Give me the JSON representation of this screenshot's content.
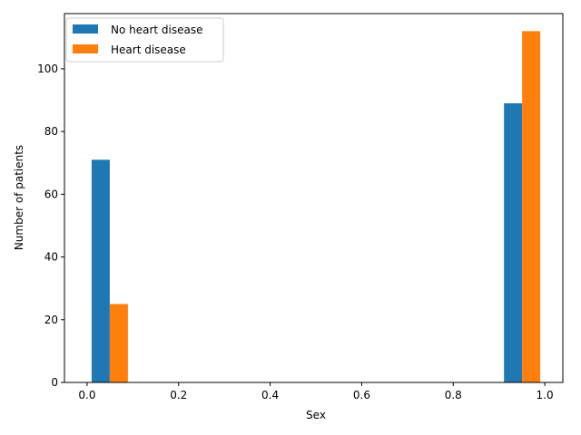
{
  "chart_data": {
    "type": "bar",
    "xlabel": "Sex",
    "ylabel": "Number of patients",
    "xlim": [
      -0.0495,
      1.0395
    ],
    "ylim": [
      0,
      117.6
    ],
    "xticks": [
      "0.0",
      "0.2",
      "0.4",
      "0.6",
      "0.8",
      "1.0"
    ],
    "xtick_values": [
      0,
      0.2,
      0.4,
      0.6,
      0.8,
      1.0
    ],
    "yticks": [
      "0",
      "20",
      "40",
      "60",
      "80",
      "100"
    ],
    "ytick_values": [
      0,
      20,
      40,
      60,
      80,
      100
    ],
    "grid": false,
    "legend_position": "top-left",
    "series": [
      {
        "name": "No heart disease",
        "color": "#1f77b4",
        "bars": [
          {
            "x0": 0.0099,
            "x1": 0.0495,
            "value": 71
          },
          {
            "x0": 0.9109,
            "x1": 0.9505,
            "value": 89
          }
        ]
      },
      {
        "name": "Heart disease",
        "color": "#ff7f0e",
        "bars": [
          {
            "x0": 0.0495,
            "x1": 0.0891,
            "value": 25
          },
          {
            "x0": 0.9505,
            "x1": 0.9901,
            "value": 112
          }
        ]
      }
    ]
  }
}
